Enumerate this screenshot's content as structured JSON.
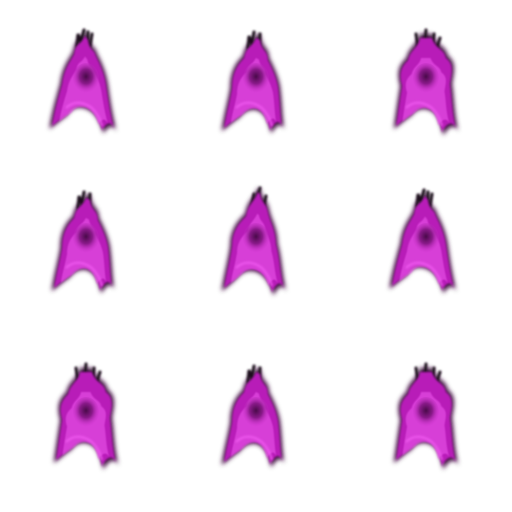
{
  "sprite_sheet": {
    "rows": 3,
    "columns": 3,
    "background": "#ffffff",
    "colors": {
      "outer_glow": "#3a0c3a",
      "flame_main": "#b81ab8",
      "flame_bright": "#f25cf2",
      "flame_core": "#5e0f5e",
      "smoke": "#1a0a1a"
    },
    "frames": [
      {
        "icon": "purple-flame-frame-1",
        "variant": "a"
      },
      {
        "icon": "purple-flame-frame-2",
        "variant": "b"
      },
      {
        "icon": "purple-flame-frame-3",
        "variant": "c"
      },
      {
        "icon": "purple-flame-frame-4",
        "variant": "b"
      },
      {
        "icon": "purple-flame-frame-5",
        "variant": "d"
      },
      {
        "icon": "purple-flame-frame-6",
        "variant": "a"
      },
      {
        "icon": "purple-flame-frame-7",
        "variant": "c"
      },
      {
        "icon": "purple-flame-frame-8",
        "variant": "b"
      },
      {
        "icon": "purple-flame-frame-9",
        "variant": "c"
      }
    ]
  }
}
